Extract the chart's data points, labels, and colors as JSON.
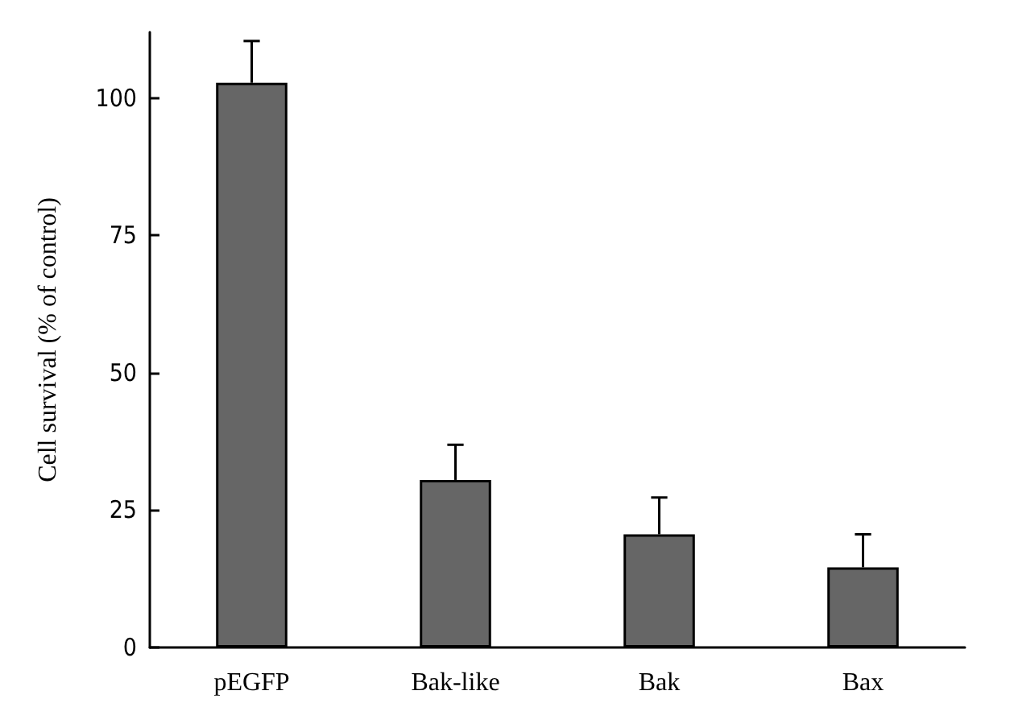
{
  "chart_data": {
    "type": "bar",
    "ylabel": "Cell survival (% of control)",
    "categories": [
      "pEGFP",
      "Bak-like",
      "Bak",
      "Bax"
    ],
    "values": [
      102.8,
      30.5,
      20.6,
      14.6
    ],
    "errors": [
      [
        102.8,
        110.4
      ],
      [
        30.5,
        36.9
      ],
      [
        20.6,
        27.3
      ],
      [
        14.6,
        20.6
      ]
    ],
    "color": "#666666",
    "ylim": [
      0,
      112
    ],
    "yticks": [
      0,
      25,
      50,
      75,
      100
    ],
    "grid": false
  }
}
